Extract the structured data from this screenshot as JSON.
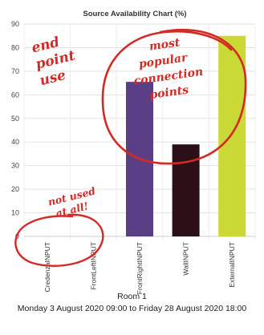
{
  "chart_data": {
    "type": "bar",
    "title": "Source Availability Chart (%)",
    "categories": [
      "CredenzaINPUT",
      "FrontLeftINPUT",
      "FrontRightINPUT",
      "WallINPUT",
      "ExternalINPUT"
    ],
    "values": [
      0,
      0,
      65.5,
      39,
      85
    ],
    "colors": [
      "#5b3f86",
      "#5b3f86",
      "#5b3f86",
      "#2c1018",
      "#cbd936"
    ],
    "ylim": [
      0,
      90
    ],
    "yticks": [
      0,
      10,
      20,
      30,
      40,
      50,
      60,
      70,
      80,
      90
    ],
    "grid": true,
    "legend": "none"
  },
  "footer": {
    "room": "Room 1",
    "period": "Monday 3 August 2020 09:00 to Friday 28 August 2020 18:00"
  },
  "annotations": {
    "left_note": [
      "end",
      "point",
      "use"
    ],
    "top_note": [
      "most",
      "popular",
      "connection",
      "points"
    ],
    "bottom_note": [
      "not used",
      "at all!"
    ],
    "ink_color": "#d42a26"
  }
}
